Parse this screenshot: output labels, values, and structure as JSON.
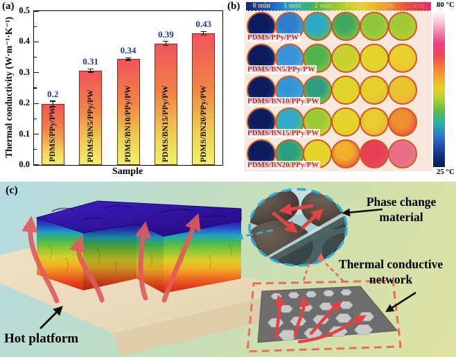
{
  "figure": {
    "panel_a_tag": "(a)",
    "panel_b_tag": "(b)",
    "panel_c_tag": "(c)"
  },
  "chart_data": {
    "type": "bar",
    "title": "",
    "xlabel": "Sample",
    "ylabel": "Thermal conductivity (W·m⁻¹·K⁻¹)",
    "ylim": [
      0,
      0.5
    ],
    "yticks": [
      "0.0",
      "0.1",
      "0.2",
      "0.3",
      "0.4",
      "0.5"
    ],
    "grid": false,
    "categories": [
      "PDMS/PPy/PW",
      "PDMS/BN5/PPy/PW",
      "PDMS/BN10/PPy/PW",
      "PDMS/BN15/PPy/PW",
      "PDMS/BN20/PPy/PW"
    ],
    "values": [
      0.198,
      0.307,
      0.344,
      0.395,
      0.428
    ],
    "value_labels": [
      "0.2",
      "0.31",
      "0.34",
      "0.39",
      "0.43"
    ],
    "errors": [
      0.009,
      0.005,
      0.004,
      0.007,
      0.006
    ],
    "bar_gradient": [
      "#f15459",
      "#ef8547",
      "#eecf52",
      "#f3ef6e"
    ],
    "bar_border": "#8a2a16",
    "value_color": "#1d3b96"
  },
  "thermal_grid": {
    "time_labels": [
      "0 min",
      "1 min",
      "2 min",
      "3 min",
      "4 min",
      "5 min"
    ],
    "time_label_colors": [
      "#cfc28a",
      "#9ed296",
      "#c2d26a",
      "#e3cf56",
      "#e8a85c",
      "#e2625e"
    ],
    "header_gradient": [
      "#18246e",
      "#1e5ac0",
      "#2aa6d0",
      "#49b64e",
      "#a8cc30",
      "#e8d42c",
      "#f0a028",
      "#e84838",
      "#e22c6a"
    ],
    "scale_max": "80 °C",
    "scale_min": "25 °C",
    "colorbar_colors": [
      "#ffffff",
      "#f9cfd8",
      "#f284b0",
      "#ec3f7e",
      "#ee4553",
      "#f3763a",
      "#f2a72e",
      "#e8cf2b",
      "#b3cd31",
      "#5fba4b",
      "#2fb0a2",
      "#2b84cb",
      "#2352b2",
      "#13307e",
      "#0a1b52"
    ],
    "ring_color": "#cf5820",
    "rows": [
      {
        "label": "PDMS/PPy/PW",
        "circles": [
          [
            "#0a1c5e",
            "#14317e"
          ],
          [
            "#2e7ece",
            "#41a8da"
          ],
          [
            "#2fa9c4",
            "#63bd50"
          ],
          [
            "#3fa85c",
            "#8cc63e"
          ],
          [
            "#8cc73c",
            "#b5cd33"
          ],
          [
            "#9fca36",
            "#c3cf2f"
          ]
        ]
      },
      {
        "label": "PDMS/BN5/PPy/PW",
        "circles": [
          [
            "#0a1c5e",
            "#14317e"
          ],
          [
            "#3b92d6",
            "#54b2e0"
          ],
          [
            "#52b34e",
            "#8bc73c"
          ],
          [
            "#c5d22f",
            "#d8d42c"
          ],
          [
            "#e3d52c",
            "#e6cf2e"
          ],
          [
            "#e8d02e",
            "#eabf34"
          ]
        ]
      },
      {
        "label": "PDMS/BN10/PPy/PW",
        "circles": [
          [
            "#0a1c5e",
            "#14317e"
          ],
          [
            "#3396d4",
            "#47aede"
          ],
          [
            "#2f9e7e",
            "#7ec441"
          ],
          [
            "#ddd42c",
            "#e5d02c"
          ],
          [
            "#e7d02c",
            "#eabd32"
          ],
          [
            "#eac42e",
            "#ecae34"
          ]
        ]
      },
      {
        "label": "PDMS/BN15/PPy/PW",
        "circles": [
          [
            "#0a1c5e",
            "#14317e"
          ],
          [
            "#31a9c9",
            "#5fc05a"
          ],
          [
            "#9cca36",
            "#cdd32c"
          ],
          [
            "#e4d52c",
            "#e7cb2e"
          ],
          [
            "#e9cd2e",
            "#eda834"
          ],
          [
            "#ef9030",
            "#e9503c"
          ]
        ]
      },
      {
        "label": "PDMS/BN20/PPy/PW",
        "circles": [
          [
            "#0a1c5e",
            "#14317e"
          ],
          [
            "#2aa082",
            "#6cc247"
          ],
          [
            "#e5d42c",
            "#e9cd2e"
          ],
          [
            "#f0b02e",
            "#e55332"
          ],
          [
            "#e63e54",
            "#e94e62"
          ],
          [
            "#ea6d85",
            "#ec7a8c"
          ]
        ]
      }
    ]
  },
  "panel_c": {
    "hot_platform_label": "Hot platform",
    "pcm_line1": "Phase change",
    "pcm_line2": "material",
    "network_line1": "Thermal conductive",
    "network_line2": "network"
  }
}
